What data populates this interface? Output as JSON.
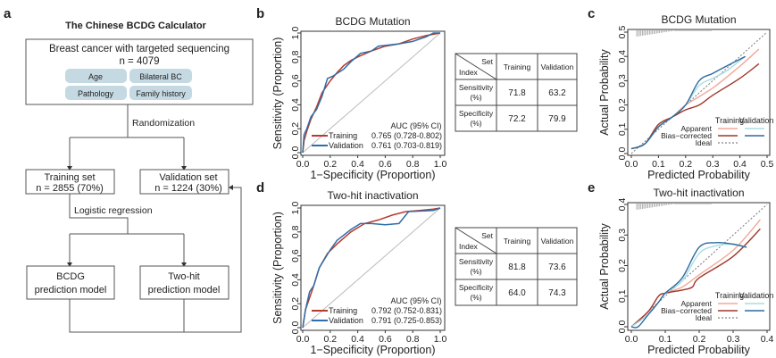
{
  "panel_labels": [
    "a",
    "b",
    "c",
    "d",
    "e"
  ],
  "flowchart": {
    "title": "The Chinese BCDG Calculator",
    "top_box": {
      "line1": "Breast cancer with targeted sequencing",
      "line2": "n = 4079"
    },
    "features": [
      "Age",
      "Bilateral BC",
      "Pathology",
      "Family history"
    ],
    "randomization": "Randomization",
    "training": {
      "line1": "Training set",
      "line2": "n = 2855 (70%)"
    },
    "validation": {
      "line1": "Validation set",
      "line2": "n = 1224 (30%)"
    },
    "logistic": "Logistic regression",
    "bcdg_model": {
      "line1": "BCDG",
      "line2": "prediction model"
    },
    "twohit_model": {
      "line1": "Two-hit",
      "line2": "prediction model"
    },
    "colors": {
      "pill": "#c5d9e3",
      "line": "#555555"
    }
  },
  "tables": [
    {
      "corner_top": "Set",
      "corner_bottom": "Index",
      "headers": [
        "Training",
        "Validation"
      ],
      "rows": [
        {
          "label1": "Sensitivity",
          "label2": "(%)",
          "values": [
            "71.8",
            "63.2"
          ]
        },
        {
          "label1": "Specificity",
          "label2": "(%)",
          "values": [
            "72.2",
            "79.9"
          ]
        }
      ]
    },
    {
      "corner_top": "Set",
      "corner_bottom": "Index",
      "headers": [
        "Training",
        "Validation"
      ],
      "rows": [
        {
          "label1": "Sensitivity",
          "label2": "(%)",
          "values": [
            "81.8",
            "73.6"
          ]
        },
        {
          "label1": "Specificity",
          "label2": "(%)",
          "values": [
            "64.0",
            "74.3"
          ]
        }
      ]
    }
  ],
  "colors": {
    "training": "#b83a2e",
    "validation": "#2f6ea8",
    "train_apparent": "#f2a898",
    "train_bias": "#a0362b",
    "val_apparent": "#a9dde0",
    "val_bias": "#2d6a9f",
    "diag": "#bbbbbb"
  },
  "chart_data": [
    {
      "type": "line",
      "title": "BCDG Mutation",
      "xlabel": "1−Specificity (Proportion)",
      "ylabel": "Sensitivity (Proportion)",
      "xlim": [
        0,
        1
      ],
      "ylim": [
        0,
        1
      ],
      "xticks": [
        "0.0",
        "0.2",
        "0.4",
        "0.6",
        "0.8",
        "1.0"
      ],
      "yticks": [
        "0.0",
        "0.2",
        "0.4",
        "0.6",
        "0.8",
        "1.0"
      ],
      "legend_header": "AUC (95% CI)",
      "legend_placement": "bottom-right",
      "series": [
        {
          "name": "Training",
          "auc": "0.765 (0.728-0.802)",
          "x": [
            0,
            0.01,
            0.03,
            0.06,
            0.1,
            0.14,
            0.2,
            0.25,
            0.3,
            0.35,
            0.4,
            0.5,
            0.6,
            0.7,
            0.8,
            0.9,
            1
          ],
          "y": [
            0,
            0.1,
            0.18,
            0.28,
            0.38,
            0.5,
            0.6,
            0.67,
            0.73,
            0.77,
            0.8,
            0.85,
            0.89,
            0.91,
            0.95,
            0.98,
            1
          ]
        },
        {
          "name": "Validation",
          "auc": "0.761 (0.703-0.819)",
          "x": [
            0,
            0.01,
            0.03,
            0.06,
            0.1,
            0.14,
            0.18,
            0.22,
            0.3,
            0.35,
            0.42,
            0.5,
            0.55,
            0.7,
            0.8,
            0.9,
            0.95,
            1
          ],
          "y": [
            0,
            0.15,
            0.2,
            0.3,
            0.36,
            0.47,
            0.62,
            0.64,
            0.7,
            0.76,
            0.83,
            0.85,
            0.89,
            0.91,
            0.93,
            0.97,
            1,
            1
          ]
        }
      ]
    },
    {
      "type": "line",
      "title": "BCDG Mutation",
      "xlabel": "Predicted Probability",
      "ylabel": "Actual Probability",
      "xlim": [
        0,
        0.5
      ],
      "ylim": [
        0,
        0.5
      ],
      "xticks": [
        "0.0",
        "0.1",
        "0.2",
        "0.3",
        "0.4",
        "0.5"
      ],
      "yticks": [
        "0.0",
        "0.1",
        "0.2",
        "0.3",
        "0.4",
        "0.5"
      ],
      "legend_columns": [
        "Training",
        "Validation"
      ],
      "legend_rows": [
        "Apparent",
        "Bias−corrected",
        "Ideal"
      ],
      "legend_placement": "bottom-right",
      "series": [
        {
          "key": "train_apparent",
          "x": [
            0,
            0.05,
            0.1,
            0.15,
            0.2,
            0.3,
            0.4,
            0.47
          ],
          "y": [
            0.02,
            0.04,
            0.12,
            0.15,
            0.2,
            0.27,
            0.36,
            0.43
          ]
        },
        {
          "key": "train_bias",
          "x": [
            0,
            0.05,
            0.1,
            0.15,
            0.2,
            0.25,
            0.3,
            0.4,
            0.47
          ],
          "y": [
            0.02,
            0.04,
            0.12,
            0.15,
            0.18,
            0.2,
            0.24,
            0.31,
            0.37
          ]
        },
        {
          "key": "val_apparent",
          "x": [
            0,
            0.05,
            0.1,
            0.15,
            0.2,
            0.25,
            0.3,
            0.35,
            0.42
          ],
          "y": [
            0.02,
            0.04,
            0.11,
            0.15,
            0.2,
            0.28,
            0.31,
            0.34,
            0.4
          ]
        },
        {
          "key": "val_bias",
          "x": [
            0,
            0.05,
            0.1,
            0.15,
            0.2,
            0.25,
            0.3,
            0.35,
            0.42
          ],
          "y": [
            0.02,
            0.04,
            0.11,
            0.15,
            0.2,
            0.3,
            0.33,
            0.36,
            0.4
          ]
        }
      ]
    },
    {
      "type": "line",
      "title": "Two-hit inactivation",
      "xlabel": "1−Specificity (Proportion)",
      "ylabel": "Sensitivity (Proportion)",
      "xlim": [
        0,
        1
      ],
      "ylim": [
        0,
        1
      ],
      "xticks": [
        "0.0",
        "0.2",
        "0.4",
        "0.6",
        "0.8",
        "1.0"
      ],
      "yticks": [
        "0.0",
        "0.2",
        "0.4",
        "0.6",
        "0.8",
        "1.0"
      ],
      "legend_header": "AUC (95% CI)",
      "legend_placement": "bottom-right",
      "series": [
        {
          "name": "Training",
          "auc": "0.792 (0.752-0.831)",
          "x": [
            0,
            0.02,
            0.05,
            0.08,
            0.12,
            0.18,
            0.25,
            0.35,
            0.45,
            0.55,
            0.65,
            0.75,
            0.85,
            0.95,
            1
          ],
          "y": [
            0,
            0.15,
            0.25,
            0.35,
            0.5,
            0.62,
            0.7,
            0.8,
            0.87,
            0.9,
            0.94,
            0.97,
            0.98,
            0.99,
            1
          ]
        },
        {
          "name": "Validation",
          "auc": "0.791 (0.725-0.853)",
          "x": [
            0,
            0.02,
            0.05,
            0.08,
            0.12,
            0.2,
            0.25,
            0.35,
            0.42,
            0.5,
            0.6,
            0.7,
            0.77,
            0.95,
            1
          ],
          "y": [
            0,
            0.15,
            0.3,
            0.35,
            0.5,
            0.65,
            0.73,
            0.82,
            0.87,
            0.87,
            0.86,
            0.87,
            0.97,
            0.98,
            1
          ]
        }
      ]
    },
    {
      "type": "line",
      "title": "Two-hit inactivation",
      "xlabel": "Predicted Probability",
      "ylabel": "Actual Probability",
      "xlim": [
        0,
        0.4
      ],
      "ylim": [
        0,
        0.4
      ],
      "xticks": [
        "0.0",
        "0.1",
        "0.2",
        "0.3",
        "0.4"
      ],
      "yticks": [
        "0.0",
        "0.1",
        "0.2",
        "0.3",
        "0.4"
      ],
      "legend_columns": [
        "Training",
        "Validation"
      ],
      "legend_rows": [
        "Apparent",
        "Bias−corrected",
        "Ideal"
      ],
      "legend_placement": "bottom-right",
      "series": [
        {
          "key": "train_apparent",
          "x": [
            0,
            0.05,
            0.08,
            0.1,
            0.15,
            0.2,
            0.3,
            0.38
          ],
          "y": [
            0,
            0.05,
            0.1,
            0.11,
            0.13,
            0.17,
            0.25,
            0.35
          ]
        },
        {
          "key": "train_bias",
          "x": [
            0,
            0.05,
            0.08,
            0.1,
            0.15,
            0.18,
            0.2,
            0.3,
            0.38
          ],
          "y": [
            0,
            0.05,
            0.1,
            0.11,
            0.12,
            0.13,
            0.16,
            0.23,
            0.32
          ]
        },
        {
          "key": "val_apparent",
          "x": [
            0,
            0.05,
            0.08,
            0.1,
            0.15,
            0.2,
            0.25,
            0.3,
            0.34
          ],
          "y": [
            0,
            0.04,
            0.08,
            0.11,
            0.15,
            0.24,
            0.265,
            0.27,
            0.26
          ]
        },
        {
          "key": "val_bias",
          "x": [
            0,
            0.02,
            0.05,
            0.08,
            0.1,
            0.15,
            0.2,
            0.25,
            0.3,
            0.34
          ],
          "y": [
            0,
            0,
            0.04,
            0.08,
            0.11,
            0.16,
            0.26,
            0.275,
            0.27,
            0.26
          ]
        }
      ]
    }
  ]
}
